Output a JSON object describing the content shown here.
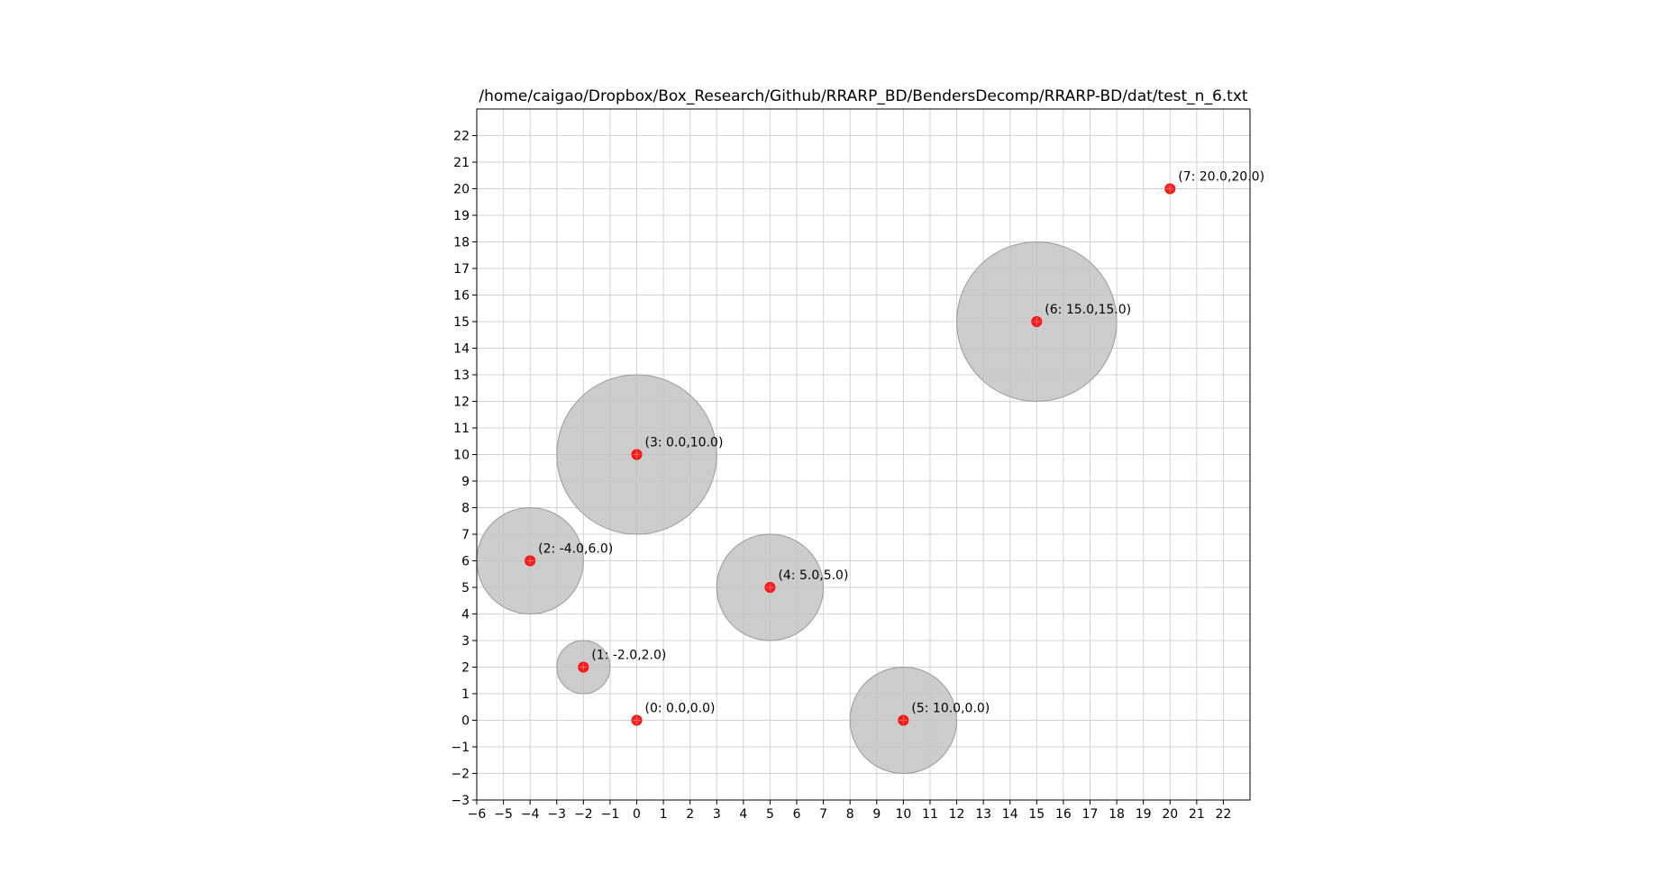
{
  "chart_data": {
    "type": "scatter",
    "title": "/home/caigao/Dropbox/Box_Research/Github/RRARP_BD/BendersDecomp/RRARP-BD/dat/test_n_6.txt",
    "xlabel": "",
    "ylabel": "",
    "xlim": [
      -6,
      23
    ],
    "ylim": [
      -3,
      23
    ],
    "xticks": [
      -6,
      -5,
      -4,
      -3,
      -2,
      -1,
      0,
      1,
      2,
      3,
      4,
      5,
      6,
      7,
      8,
      9,
      10,
      11,
      12,
      13,
      14,
      15,
      16,
      17,
      18,
      19,
      20,
      21,
      22
    ],
    "yticks": [
      -3,
      -2,
      -1,
      0,
      1,
      2,
      3,
      4,
      5,
      6,
      7,
      8,
      9,
      10,
      11,
      12,
      13,
      14,
      15,
      16,
      17,
      18,
      19,
      20,
      21,
      22
    ],
    "grid": true,
    "points": [
      {
        "id": 0,
        "x": 0,
        "y": 0,
        "label": "(0: 0.0,0.0)"
      },
      {
        "id": 1,
        "x": -2,
        "y": 2,
        "label": "(1: -2.0,2.0)"
      },
      {
        "id": 2,
        "x": -4,
        "y": 6,
        "label": "(2: -4.0,6.0)"
      },
      {
        "id": 3,
        "x": 0,
        "y": 10,
        "label": "(3: 0.0,10.0)"
      },
      {
        "id": 4,
        "x": 5,
        "y": 5,
        "label": "(4: 5.0,5.0)"
      },
      {
        "id": 5,
        "x": 10,
        "y": 0,
        "label": "(5: 10.0,0.0)"
      },
      {
        "id": 6,
        "x": 15,
        "y": 15,
        "label": "(6: 15.0,15.0)"
      },
      {
        "id": 7,
        "x": 20,
        "y": 20,
        "label": "(7: 20.0,20.0)"
      }
    ],
    "circles": [
      {
        "cx": -2,
        "cy": 2,
        "r": 1
      },
      {
        "cx": -4,
        "cy": 6,
        "r": 2
      },
      {
        "cx": 0,
        "cy": 10,
        "r": 3
      },
      {
        "cx": 5,
        "cy": 5,
        "r": 2
      },
      {
        "cx": 10,
        "cy": 0,
        "r": 2
      },
      {
        "cx": 15,
        "cy": 15,
        "r": 3
      }
    ],
    "colors": {
      "point": "#ff0000",
      "circle_fill": "#bfbfbf",
      "circle_edge": "#9a9a9a",
      "grid": "#d3d3d3"
    }
  }
}
